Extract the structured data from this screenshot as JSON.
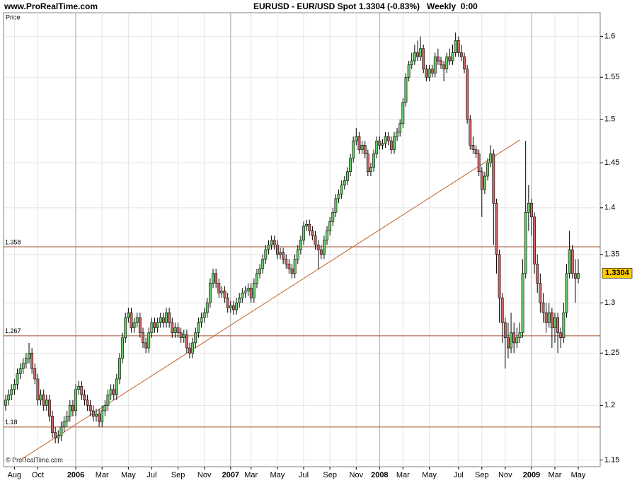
{
  "chart_data": {
    "type": "candlestick",
    "site": "www.ProRealTime.com",
    "title": "EURUSD - EUR/USD Spot",
    "quote": "1.3304 (-0.83%)",
    "period": "Weekly  0:00",
    "y_label": "Price",
    "copyright": "© ProRealTime.com",
    "log_scale": true,
    "grid": true,
    "up_color": "#66cc66",
    "down_color": "#cc6666",
    "level_color": "#a0522d",
    "ylim": [
      1.144,
      1.63
    ],
    "yticks": [
      1.15,
      1.2,
      1.25,
      1.3,
      1.35,
      1.4,
      1.45,
      1.5,
      1.55,
      1.6
    ],
    "xticks": [
      {
        "value": 3,
        "label": "Aug"
      },
      {
        "value": 11,
        "label": "Oct"
      },
      {
        "value": 24,
        "label": "2006"
      },
      {
        "value": 33,
        "label": "Mar"
      },
      {
        "value": 42,
        "label": "May"
      },
      {
        "value": 50,
        "label": "Jul"
      },
      {
        "value": 59,
        "label": "Sep"
      },
      {
        "value": 68,
        "label": "Nov"
      },
      {
        "value": 77,
        "label": "2007"
      },
      {
        "value": 84,
        "label": "Mar"
      },
      {
        "value": 93,
        "label": "May"
      },
      {
        "value": 102,
        "label": "Jul"
      },
      {
        "value": 111,
        "label": "Sep"
      },
      {
        "value": 120,
        "label": "Nov"
      },
      {
        "value": 128,
        "label": "2008"
      },
      {
        "value": 136,
        "label": "Mar"
      },
      {
        "value": 145,
        "label": "May"
      },
      {
        "value": 155,
        "label": "Jul"
      },
      {
        "value": 163,
        "label": "Sep"
      },
      {
        "value": 171,
        "label": "Nov"
      },
      {
        "value": 180,
        "label": "2009"
      },
      {
        "value": 188,
        "label": "Mar"
      },
      {
        "value": 196,
        "label": "May"
      }
    ],
    "levels": [
      1.358,
      1.267,
      1.18
    ],
    "trendline": {
      "from": {
        "index": 5,
        "value": 1.15
      },
      "to": {
        "index": 176,
        "value": 1.476
      }
    },
    "last_value": 1.3304,
    "candles": [
      [
        1.2,
        1.21,
        1.195,
        1.205
      ],
      [
        1.205,
        1.215,
        1.2,
        1.21
      ],
      [
        1.21,
        1.22,
        1.205,
        1.215
      ],
      [
        1.215,
        1.225,
        1.21,
        1.22
      ],
      [
        1.22,
        1.235,
        1.215,
        1.23
      ],
      [
        1.23,
        1.24,
        1.225,
        1.235
      ],
      [
        1.235,
        1.245,
        1.23,
        1.24
      ],
      [
        1.24,
        1.25,
        1.235,
        1.245
      ],
      [
        1.245,
        1.26,
        1.24,
        1.25
      ],
      [
        1.25,
        1.255,
        1.23,
        1.235
      ],
      [
        1.235,
        1.24,
        1.22,
        1.225
      ],
      [
        1.225,
        1.23,
        1.2,
        1.205
      ],
      [
        1.205,
        1.215,
        1.2,
        1.21
      ],
      [
        1.21,
        1.215,
        1.195,
        1.2
      ],
      [
        1.2,
        1.21,
        1.195,
        1.205
      ],
      [
        1.205,
        1.21,
        1.185,
        1.19
      ],
      [
        1.19,
        1.195,
        1.17,
        1.175
      ],
      [
        1.175,
        1.18,
        1.165,
        1.17
      ],
      [
        1.17,
        1.177,
        1.165,
        1.172
      ],
      [
        1.172,
        1.185,
        1.167,
        1.18
      ],
      [
        1.18,
        1.19,
        1.175,
        1.185
      ],
      [
        1.185,
        1.195,
        1.18,
        1.19
      ],
      [
        1.19,
        1.205,
        1.185,
        1.2
      ],
      [
        1.2,
        1.205,
        1.19,
        1.195
      ],
      [
        1.195,
        1.22,
        1.19,
        1.215
      ],
      [
        1.215,
        1.223,
        1.21,
        1.218
      ],
      [
        1.218,
        1.223,
        1.205,
        1.21
      ],
      [
        1.21,
        1.215,
        1.2,
        1.205
      ],
      [
        1.205,
        1.21,
        1.195,
        1.2
      ],
      [
        1.2,
        1.205,
        1.19,
        1.195
      ],
      [
        1.195,
        1.2,
        1.185,
        1.19
      ],
      [
        1.19,
        1.197,
        1.185,
        1.192
      ],
      [
        1.192,
        1.197,
        1.18,
        1.185
      ],
      [
        1.185,
        1.2,
        1.18,
        1.195
      ],
      [
        1.195,
        1.205,
        1.19,
        1.2
      ],
      [
        1.2,
        1.215,
        1.195,
        1.21
      ],
      [
        1.21,
        1.22,
        1.205,
        1.215
      ],
      [
        1.215,
        1.22,
        1.205,
        1.21
      ],
      [
        1.21,
        1.23,
        1.205,
        1.225
      ],
      [
        1.225,
        1.25,
        1.22,
        1.245
      ],
      [
        1.245,
        1.27,
        1.24,
        1.265
      ],
      [
        1.265,
        1.29,
        1.26,
        1.285
      ],
      [
        1.285,
        1.295,
        1.28,
        1.29
      ],
      [
        1.29,
        1.295,
        1.27,
        1.275
      ],
      [
        1.275,
        1.285,
        1.27,
        1.28
      ],
      [
        1.28,
        1.29,
        1.275,
        1.285
      ],
      [
        1.285,
        1.29,
        1.265,
        1.27
      ],
      [
        1.27,
        1.275,
        1.255,
        1.26
      ],
      [
        1.26,
        1.265,
        1.25,
        1.255
      ],
      [
        1.255,
        1.275,
        1.25,
        1.27
      ],
      [
        1.27,
        1.285,
        1.265,
        1.28
      ],
      [
        1.28,
        1.285,
        1.27,
        1.275
      ],
      [
        1.275,
        1.285,
        1.27,
        1.28
      ],
      [
        1.28,
        1.29,
        1.275,
        1.285
      ],
      [
        1.285,
        1.29,
        1.275,
        1.28
      ],
      [
        1.28,
        1.295,
        1.275,
        1.29
      ],
      [
        1.29,
        1.295,
        1.275,
        1.28
      ],
      [
        1.28,
        1.285,
        1.265,
        1.27
      ],
      [
        1.27,
        1.28,
        1.265,
        1.275
      ],
      [
        1.275,
        1.28,
        1.265,
        1.27
      ],
      [
        1.27,
        1.275,
        1.26,
        1.265
      ],
      [
        1.265,
        1.273,
        1.26,
        1.268
      ],
      [
        1.268,
        1.273,
        1.25,
        1.255
      ],
      [
        1.255,
        1.26,
        1.245,
        1.25
      ],
      [
        1.25,
        1.265,
        1.245,
        1.26
      ],
      [
        1.26,
        1.275,
        1.255,
        1.27
      ],
      [
        1.27,
        1.285,
        1.265,
        1.28
      ],
      [
        1.28,
        1.29,
        1.275,
        1.285
      ],
      [
        1.285,
        1.295,
        1.28,
        1.29
      ],
      [
        1.29,
        1.305,
        1.285,
        1.3
      ],
      [
        1.3,
        1.325,
        1.295,
        1.32
      ],
      [
        1.32,
        1.335,
        1.315,
        1.33
      ],
      [
        1.33,
        1.335,
        1.315,
        1.32
      ],
      [
        1.32,
        1.325,
        1.305,
        1.31
      ],
      [
        1.31,
        1.317,
        1.305,
        1.312
      ],
      [
        1.312,
        1.317,
        1.3,
        1.305
      ],
      [
        1.305,
        1.31,
        1.29,
        1.295
      ],
      [
        1.295,
        1.302,
        1.29,
        1.297
      ],
      [
        1.297,
        1.302,
        1.288,
        1.293
      ],
      [
        1.293,
        1.305,
        1.288,
        1.3
      ],
      [
        1.3,
        1.31,
        1.295,
        1.305
      ],
      [
        1.305,
        1.315,
        1.3,
        1.31
      ],
      [
        1.31,
        1.317,
        1.305,
        1.312
      ],
      [
        1.312,
        1.32,
        1.307,
        1.315
      ],
      [
        1.315,
        1.32,
        1.3,
        1.305
      ],
      [
        1.305,
        1.325,
        1.3,
        1.32
      ],
      [
        1.32,
        1.335,
        1.315,
        1.33
      ],
      [
        1.33,
        1.34,
        1.325,
        1.335
      ],
      [
        1.335,
        1.35,
        1.33,
        1.345
      ],
      [
        1.345,
        1.36,
        1.34,
        1.355
      ],
      [
        1.355,
        1.365,
        1.35,
        1.36
      ],
      [
        1.36,
        1.37,
        1.355,
        1.365
      ],
      [
        1.365,
        1.37,
        1.355,
        1.36
      ],
      [
        1.36,
        1.365,
        1.345,
        1.35
      ],
      [
        1.35,
        1.357,
        1.345,
        1.352
      ],
      [
        1.352,
        1.357,
        1.34,
        1.345
      ],
      [
        1.345,
        1.35,
        1.335,
        1.34
      ],
      [
        1.34,
        1.345,
        1.33,
        1.335
      ],
      [
        1.335,
        1.34,
        1.325,
        1.33
      ],
      [
        1.33,
        1.35,
        1.325,
        1.345
      ],
      [
        1.345,
        1.36,
        1.34,
        1.355
      ],
      [
        1.355,
        1.37,
        1.35,
        1.365
      ],
      [
        1.365,
        1.385,
        1.36,
        1.38
      ],
      [
        1.38,
        1.387,
        1.375,
        1.382
      ],
      [
        1.382,
        1.387,
        1.37,
        1.375
      ],
      [
        1.375,
        1.38,
        1.365,
        1.37
      ],
      [
        1.37,
        1.375,
        1.355,
        1.36
      ],
      [
        1.36,
        1.365,
        1.335,
        1.355
      ],
      [
        1.355,
        1.36,
        1.345,
        1.35
      ],
      [
        1.35,
        1.37,
        1.345,
        1.365
      ],
      [
        1.365,
        1.38,
        1.36,
        1.375
      ],
      [
        1.375,
        1.39,
        1.37,
        1.385
      ],
      [
        1.385,
        1.4,
        1.38,
        1.395
      ],
      [
        1.395,
        1.415,
        1.39,
        1.41
      ],
      [
        1.41,
        1.42,
        1.405,
        1.415
      ],
      [
        1.415,
        1.43,
        1.41,
        1.425
      ],
      [
        1.425,
        1.435,
        1.42,
        1.43
      ],
      [
        1.43,
        1.445,
        1.425,
        1.44
      ],
      [
        1.44,
        1.46,
        1.435,
        1.455
      ],
      [
        1.455,
        1.48,
        1.45,
        1.475
      ],
      [
        1.475,
        1.49,
        1.47,
        1.48
      ],
      [
        1.48,
        1.485,
        1.46,
        1.465
      ],
      [
        1.465,
        1.475,
        1.46,
        1.47
      ],
      [
        1.47,
        1.475,
        1.455,
        1.46
      ],
      [
        1.46,
        1.465,
        1.435,
        1.44
      ],
      [
        1.44,
        1.45,
        1.435,
        1.445
      ],
      [
        1.445,
        1.465,
        1.44,
        1.46
      ],
      [
        1.46,
        1.48,
        1.455,
        1.475
      ],
      [
        1.475,
        1.48,
        1.465,
        1.47
      ],
      [
        1.47,
        1.477,
        1.465,
        1.472
      ],
      [
        1.472,
        1.485,
        1.467,
        1.48
      ],
      [
        1.48,
        1.485,
        1.47,
        1.475
      ],
      [
        1.475,
        1.48,
        1.46,
        1.465
      ],
      [
        1.465,
        1.485,
        1.46,
        1.48
      ],
      [
        1.48,
        1.49,
        1.475,
        1.485
      ],
      [
        1.485,
        1.5,
        1.48,
        1.495
      ],
      [
        1.495,
        1.525,
        1.49,
        1.52
      ],
      [
        1.52,
        1.555,
        1.515,
        1.55
      ],
      [
        1.55,
        1.57,
        1.545,
        1.565
      ],
      [
        1.565,
        1.58,
        1.56,
        1.57
      ],
      [
        1.57,
        1.59,
        1.565,
        1.58
      ],
      [
        1.58,
        1.595,
        1.57,
        1.575
      ],
      [
        1.575,
        1.6,
        1.57,
        1.585
      ],
      [
        1.585,
        1.59,
        1.555,
        1.56
      ],
      [
        1.56,
        1.565,
        1.545,
        1.55
      ],
      [
        1.55,
        1.565,
        1.545,
        1.56
      ],
      [
        1.56,
        1.565,
        1.55,
        1.555
      ],
      [
        1.555,
        1.58,
        1.55,
        1.575
      ],
      [
        1.575,
        1.585,
        1.565,
        1.57
      ],
      [
        1.57,
        1.575,
        1.56,
        1.565
      ],
      [
        1.565,
        1.57,
        1.545,
        1.56
      ],
      [
        1.56,
        1.58,
        1.555,
        1.575
      ],
      [
        1.575,
        1.585,
        1.565,
        1.57
      ],
      [
        1.57,
        1.59,
        1.565,
        1.58
      ],
      [
        1.58,
        1.605,
        1.575,
        1.595
      ],
      [
        1.595,
        1.6,
        1.575,
        1.58
      ],
      [
        1.58,
        1.59,
        1.57,
        1.575
      ],
      [
        1.575,
        1.58,
        1.555,
        1.56
      ],
      [
        1.56,
        1.565,
        1.495,
        1.5
      ],
      [
        1.5,
        1.505,
        1.465,
        1.47
      ],
      [
        1.47,
        1.48,
        1.46,
        1.465
      ],
      [
        1.465,
        1.47,
        1.455,
        1.46
      ],
      [
        1.46,
        1.465,
        1.435,
        1.44
      ],
      [
        1.44,
        1.445,
        1.39,
        1.42
      ],
      [
        1.42,
        1.44,
        1.415,
        1.435
      ],
      [
        1.435,
        1.455,
        1.43,
        1.45
      ],
      [
        1.45,
        1.47,
        1.445,
        1.46
      ],
      [
        1.46,
        1.465,
        1.36,
        1.405
      ],
      [
        1.405,
        1.41,
        1.33,
        1.35
      ],
      [
        1.35,
        1.355,
        1.28,
        1.305
      ],
      [
        1.305,
        1.31,
        1.26,
        1.28
      ],
      [
        1.28,
        1.285,
        1.235,
        1.265
      ],
      [
        1.265,
        1.28,
        1.245,
        1.255
      ],
      [
        1.255,
        1.29,
        1.25,
        1.27
      ],
      [
        1.27,
        1.28,
        1.25,
        1.26
      ],
      [
        1.26,
        1.275,
        1.255,
        1.265
      ],
      [
        1.265,
        1.28,
        1.26,
        1.27
      ],
      [
        1.27,
        1.345,
        1.265,
        1.33
      ],
      [
        1.33,
        1.475,
        1.325,
        1.395
      ],
      [
        1.395,
        1.425,
        1.375,
        1.405
      ],
      [
        1.405,
        1.41,
        1.37,
        1.39
      ],
      [
        1.39,
        1.395,
        1.33,
        1.34
      ],
      [
        1.34,
        1.35,
        1.31,
        1.32
      ],
      [
        1.32,
        1.33,
        1.29,
        1.3
      ],
      [
        1.3,
        1.31,
        1.28,
        1.29
      ],
      [
        1.29,
        1.3,
        1.27,
        1.28
      ],
      [
        1.28,
        1.3,
        1.275,
        1.29
      ],
      [
        1.29,
        1.295,
        1.255,
        1.275
      ],
      [
        1.275,
        1.29,
        1.26,
        1.285
      ],
      [
        1.285,
        1.29,
        1.25,
        1.27
      ],
      [
        1.27,
        1.275,
        1.255,
        1.265
      ],
      [
        1.265,
        1.3,
        1.26,
        1.29
      ],
      [
        1.29,
        1.34,
        1.285,
        1.33
      ],
      [
        1.33,
        1.375,
        1.325,
        1.355
      ],
      [
        1.355,
        1.36,
        1.325,
        1.33
      ],
      [
        1.33,
        1.345,
        1.3,
        1.325
      ],
      [
        1.325,
        1.345,
        1.32,
        1.3304
      ]
    ]
  }
}
